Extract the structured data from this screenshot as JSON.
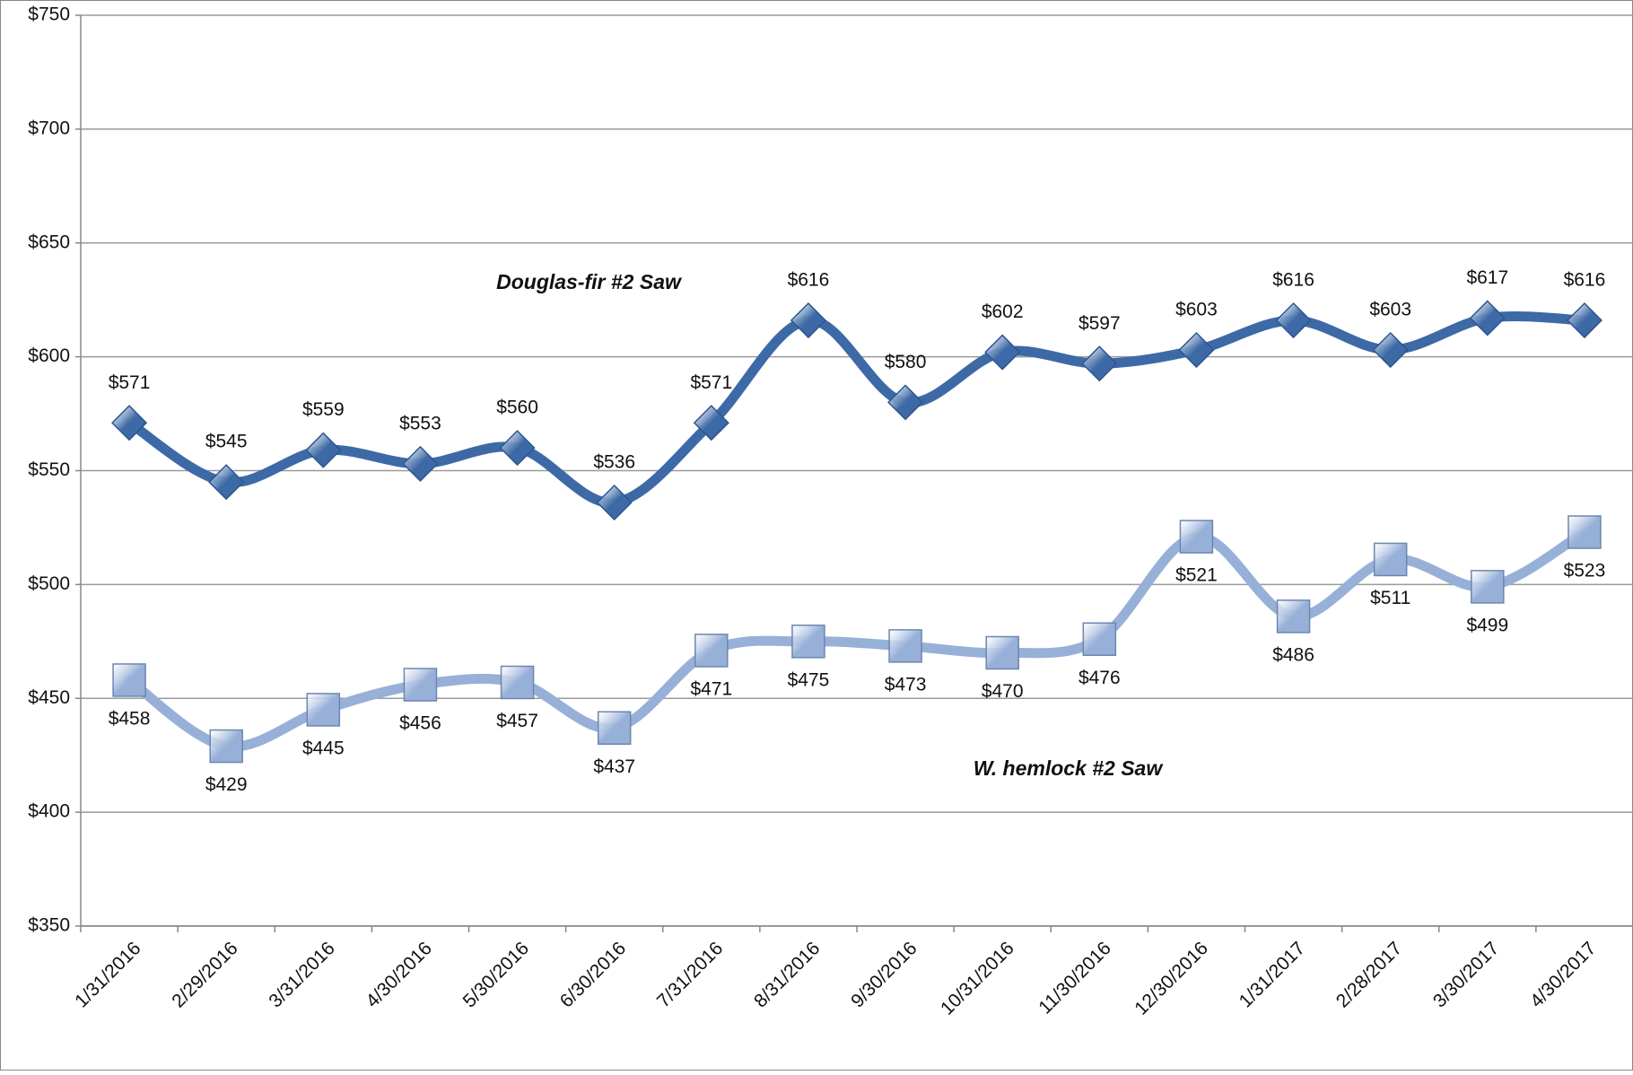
{
  "chart_data": {
    "type": "line",
    "categories": [
      "1/31/2016",
      "2/29/2016",
      "3/31/2016",
      "4/30/2016",
      "5/30/2016",
      "6/30/2016",
      "7/31/2016",
      "8/31/2016",
      "9/30/2016",
      "10/31/2016",
      "11/30/2016",
      "12/30/2016",
      "1/31/2017",
      "2/28/2017",
      "3/30/2017",
      "4/30/2017"
    ],
    "series": [
      {
        "name": "Douglas-fir #2 Saw",
        "color": "#3d6aa6",
        "marker": "diamond",
        "values": [
          571,
          545,
          559,
          553,
          560,
          536,
          571,
          616,
          580,
          602,
          597,
          603,
          616,
          603,
          617,
          616
        ],
        "value_labels": [
          "$571",
          "$545",
          "$559",
          "$553",
          "$560",
          "$536",
          "$571",
          "$616",
          "$580",
          "$602",
          "$597",
          "$603",
          "$616",
          "$603",
          "$617",
          "$616"
        ],
        "label_position": "above"
      },
      {
        "name": "W. hemlock  #2 Saw",
        "color": "#97b0d8",
        "marker": "square",
        "values": [
          458,
          429,
          445,
          456,
          457,
          437,
          471,
          475,
          473,
          470,
          476,
          521,
          486,
          511,
          499,
          523
        ],
        "value_labels": [
          "$458",
          "$429",
          "$445",
          "$456",
          "$457",
          "$437",
          "$471",
          "$475",
          "$473",
          "$470",
          "$476",
          "$521",
          "$486",
          "$511",
          "$499",
          "$523"
        ],
        "label_position": "below"
      }
    ],
    "ylim": [
      350,
      750
    ],
    "yticks": [
      {
        "value": 350,
        "label": "$350"
      },
      {
        "value": 400,
        "label": "$400"
      },
      {
        "value": 450,
        "label": "$450"
      },
      {
        "value": 500,
        "label": "$500"
      },
      {
        "value": 550,
        "label": "$550"
      },
      {
        "value": 600,
        "label": "$600"
      },
      {
        "value": 650,
        "label": "$650"
      },
      {
        "value": 700,
        "label": "$700"
      },
      {
        "value": 750,
        "label": "$750"
      }
    ],
    "grid": true
  }
}
